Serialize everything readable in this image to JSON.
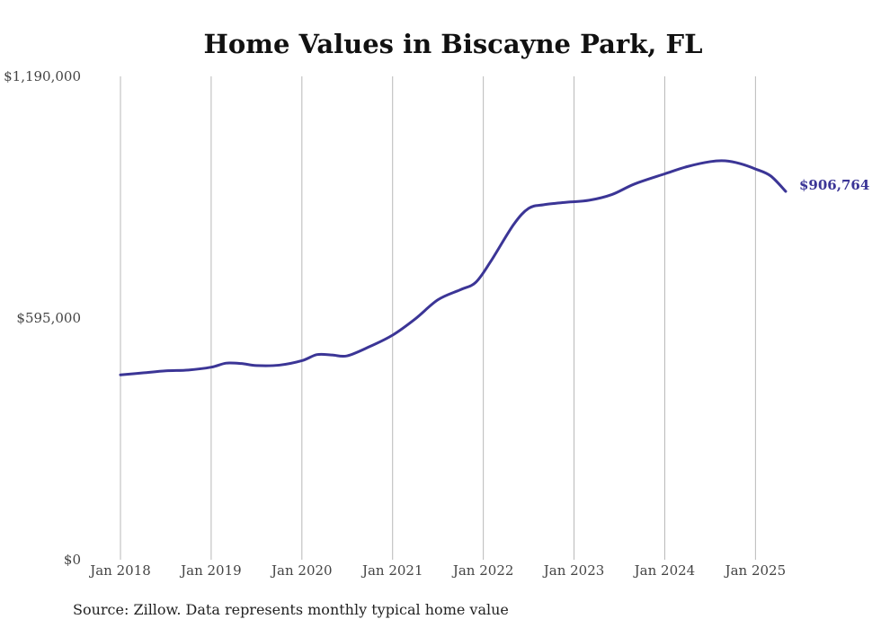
{
  "chart_data": {
    "type": "line",
    "title": "Home Values in Biscayne Park, FL",
    "source_note": "Source: Zillow. Data represents monthly typical home value",
    "end_label": "$906,764",
    "line_color": "#3b3596",
    "grid": "vertical",
    "xlim": [
      "2018-01",
      "2025-05"
    ],
    "ylim": [
      0,
      1190000
    ],
    "x_ticks": [
      {
        "date": "2018-01",
        "label": "Jan 2018"
      },
      {
        "date": "2019-01",
        "label": "Jan 2019"
      },
      {
        "date": "2020-01",
        "label": "Jan 2020"
      },
      {
        "date": "2021-01",
        "label": "Jan 2021"
      },
      {
        "date": "2022-01",
        "label": "Jan 2022"
      },
      {
        "date": "2023-01",
        "label": "Jan 2023"
      },
      {
        "date": "2024-01",
        "label": "Jan 2024"
      },
      {
        "date": "2025-01",
        "label": "Jan 2025"
      }
    ],
    "y_ticks": [
      {
        "value": 0,
        "label": "$0"
      },
      {
        "value": 595000,
        "label": "$595,000"
      },
      {
        "value": 1190000,
        "label": "$1,190,000"
      }
    ],
    "series": [
      {
        "points": [
          {
            "x": "2018-01",
            "y": 455000
          },
          {
            "x": "2018-04",
            "y": 460000
          },
          {
            "x": "2018-07",
            "y": 465000
          },
          {
            "x": "2018-10",
            "y": 467000
          },
          {
            "x": "2019-01",
            "y": 474000
          },
          {
            "x": "2019-03",
            "y": 484000
          },
          {
            "x": "2019-05",
            "y": 483000
          },
          {
            "x": "2019-07",
            "y": 478000
          },
          {
            "x": "2019-10",
            "y": 479000
          },
          {
            "x": "2020-01",
            "y": 490000
          },
          {
            "x": "2020-03",
            "y": 505000
          },
          {
            "x": "2020-05",
            "y": 504000
          },
          {
            "x": "2020-07",
            "y": 502000
          },
          {
            "x": "2020-10",
            "y": 525000
          },
          {
            "x": "2021-01",
            "y": 553000
          },
          {
            "x": "2021-04",
            "y": 593000
          },
          {
            "x": "2021-07",
            "y": 640000
          },
          {
            "x": "2021-10",
            "y": 665000
          },
          {
            "x": "2021-12",
            "y": 683000
          },
          {
            "x": "2022-02",
            "y": 735000
          },
          {
            "x": "2022-05",
            "y": 825000
          },
          {
            "x": "2022-07",
            "y": 865000
          },
          {
            "x": "2022-09",
            "y": 874000
          },
          {
            "x": "2022-12",
            "y": 880000
          },
          {
            "x": "2023-03",
            "y": 885000
          },
          {
            "x": "2023-06",
            "y": 899000
          },
          {
            "x": "2023-09",
            "y": 925000
          },
          {
            "x": "2024-01",
            "y": 950000
          },
          {
            "x": "2024-04",
            "y": 968000
          },
          {
            "x": "2024-07",
            "y": 980000
          },
          {
            "x": "2024-09",
            "y": 982000
          },
          {
            "x": "2024-11",
            "y": 975000
          },
          {
            "x": "2025-01",
            "y": 962000
          },
          {
            "x": "2025-03",
            "y": 945000
          },
          {
            "x": "2025-05",
            "y": 906764
          }
        ]
      }
    ]
  }
}
